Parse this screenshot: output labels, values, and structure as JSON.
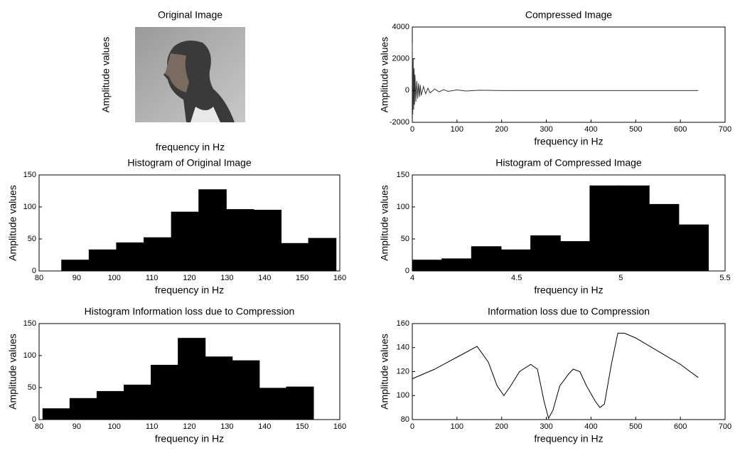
{
  "chart_data": [
    {
      "type": "image",
      "title": "Original Image",
      "xlabel": "frequency in Hz",
      "ylabel": "Amplitude values"
    },
    {
      "type": "line",
      "title": "Compressed Image",
      "xlabel": "frequency in Hz",
      "ylabel": "Amplitude values",
      "color": "#333333",
      "x": [
        0,
        1,
        2,
        3,
        4,
        5,
        6,
        8,
        10,
        12,
        14,
        16,
        18,
        20,
        25,
        30,
        35,
        40,
        50,
        60,
        70,
        80,
        100,
        120,
        150,
        200,
        300,
        400,
        500,
        600,
        640
      ],
      "values": [
        3000,
        -1500,
        2000,
        -1200,
        1400,
        -900,
        1000,
        -700,
        600,
        -500,
        450,
        -400,
        350,
        -300,
        250,
        -200,
        150,
        -150,
        100,
        -80,
        60,
        -50,
        40,
        -30,
        20,
        0,
        0,
        0,
        0,
        0,
        0
      ],
      "xlim": [
        0,
        700
      ],
      "xticks": [
        0,
        100,
        200,
        300,
        400,
        500,
        600,
        700
      ],
      "ylim": [
        -2000,
        4000
      ],
      "yticks": [
        -2000,
        0,
        2000,
        4000
      ]
    },
    {
      "type": "histogram",
      "title": "Histogram of Original Image",
      "xlabel": "frequency in Hz",
      "ylabel": "Amplitude values",
      "color": "#000000",
      "bins": [
        86,
        93.3,
        100.6,
        107.9,
        115.2,
        122.5,
        129.8,
        137.1,
        144.4,
        151.7,
        159
      ],
      "values": [
        17,
        33,
        44,
        52,
        92,
        127,
        96,
        95,
        43,
        51
      ],
      "xlim": [
        80,
        160
      ],
      "xticks": [
        80,
        90,
        100,
        110,
        120,
        130,
        140,
        150,
        160
      ],
      "ylim": [
        0,
        150
      ],
      "yticks": [
        0,
        50,
        100,
        150
      ]
    },
    {
      "type": "histogram",
      "title": "Histogram of Compressed Image",
      "xlabel": "frequency in Hz",
      "ylabel": "Amplitude values",
      "color": "#000000",
      "bins": [
        4,
        4.142,
        4.284,
        4.426,
        4.568,
        4.71,
        4.852,
        4.994,
        5.136,
        5.278,
        5.42
      ],
      "values": [
        17,
        19,
        38,
        33,
        55,
        46,
        133,
        133,
        104,
        72
      ],
      "xlim": [
        4,
        5.5
      ],
      "xticks": [
        4,
        4.5,
        5,
        5.5
      ],
      "ylim": [
        0,
        150
      ],
      "yticks": [
        0,
        50,
        100,
        150
      ]
    },
    {
      "type": "histogram",
      "title": "Histogram Information loss due to Compression",
      "xlabel": "frequency in Hz",
      "ylabel": "Amplitude values",
      "color": "#000000",
      "bins": [
        81,
        88.2,
        95.4,
        102.6,
        109.8,
        117,
        124.2,
        131.4,
        138.6,
        145.8,
        153
      ],
      "values": [
        17,
        33,
        44,
        54,
        85,
        127,
        98,
        92,
        49,
        51
      ],
      "xlim": [
        80,
        160
      ],
      "xticks": [
        80,
        90,
        100,
        110,
        120,
        130,
        140,
        150,
        160
      ],
      "ylim": [
        0,
        150
      ],
      "yticks": [
        0,
        50,
        100,
        150
      ]
    },
    {
      "type": "line",
      "title": "Information loss due to Compression",
      "xlabel": "frequency in Hz",
      "ylabel": "Amplitude values",
      "color": "#000000",
      "x": [
        0,
        50,
        100,
        145,
        170,
        190,
        205,
        220,
        240,
        265,
        280,
        295,
        305,
        315,
        330,
        350,
        360,
        375,
        390,
        410,
        420,
        430,
        445,
        460,
        475,
        500,
        550,
        600,
        640
      ],
      "values": [
        114,
        122,
        132,
        141,
        128,
        108,
        100,
        108,
        120,
        126,
        122,
        95,
        81,
        88,
        108,
        118,
        122,
        120,
        108,
        95,
        90,
        93,
        125,
        152,
        152,
        148,
        137,
        126,
        115
      ],
      "xlim": [
        0,
        700
      ],
      "xticks": [
        0,
        100,
        200,
        300,
        400,
        500,
        600,
        700
      ],
      "ylim": [
        80,
        160
      ],
      "yticks": [
        80,
        100,
        120,
        140,
        160
      ]
    }
  ]
}
